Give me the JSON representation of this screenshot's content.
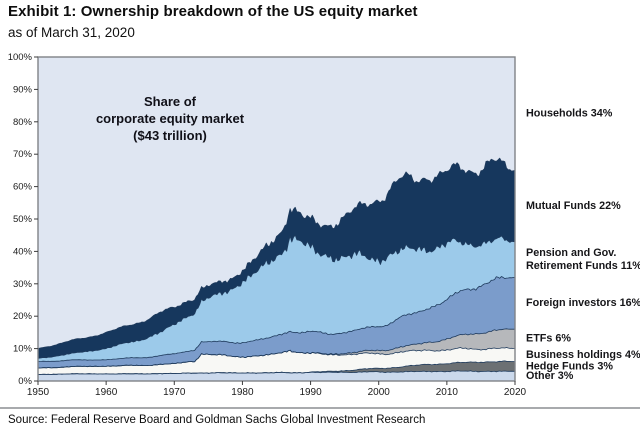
{
  "header": {
    "title": "Exhibit 1: Ownership breakdown of the US equity market",
    "subtitle": "as of March 31, 2020"
  },
  "footer": {
    "source": "Source: Federal Reserve Board and Goldman Sachs Global Investment Research"
  },
  "chart_data": {
    "type": "area",
    "stacked": true,
    "annotation": {
      "lines": [
        "Share of",
        "corporate equity market",
        "($43 trillion)"
      ]
    },
    "x_range": [
      1950,
      2020
    ],
    "ylim": [
      0,
      100
    ],
    "grid": false,
    "legend_position": "right-margin",
    "x_ticks": [
      1950,
      1960,
      1970,
      1980,
      1990,
      2000,
      2010,
      2020
    ],
    "x_tick_labels": [
      "1950",
      "1960",
      "1970",
      "1980",
      "1990",
      "2000",
      "2010",
      "2020"
    ],
    "y_ticks": [
      0,
      10,
      20,
      30,
      40,
      50,
      60,
      70,
      80,
      90,
      100
    ],
    "y_tick_labels": [
      "0%",
      "10%",
      "20%",
      "30%",
      "40%",
      "50%",
      "60%",
      "70%",
      "80%",
      "90%",
      "100%"
    ],
    "keyframe_years": [
      1950,
      1955,
      1960,
      1965,
      1968,
      1970,
      1972,
      1973,
      1974,
      1976,
      1978,
      1980,
      1982,
      1984,
      1986,
      1987,
      1989,
      1991,
      1993,
      1995,
      1997,
      1999,
      2001,
      2003,
      2005,
      2007,
      2009,
      2011,
      2013,
      2015,
      2017,
      2019,
      2020
    ],
    "series": [
      {
        "name": "Other",
        "label_lines": [
          "Other 3%"
        ],
        "share_2020": 3,
        "color": "#cbd9ec",
        "values": [
          2.0,
          2.2,
          2.2,
          2.2,
          2.3,
          2.3,
          2.4,
          2.45,
          2.5,
          2.5,
          2.5,
          2.5,
          2.5,
          2.5,
          2.6,
          2.6,
          2.6,
          2.6,
          2.7,
          2.7,
          2.7,
          2.8,
          2.8,
          2.8,
          2.9,
          2.9,
          3.0,
          3.0,
          3.0,
          3.0,
          3.0,
          3.0,
          3.0
        ]
      },
      {
        "name": "Hedge Funds",
        "label_lines": [
          "Hedge Funds 3%"
        ],
        "share_2020": 3,
        "color": "#6c7073",
        "values": [
          0,
          0,
          0,
          0,
          0,
          0,
          0,
          0,
          0,
          0,
          0,
          0,
          0,
          0,
          0,
          0,
          0,
          0.2,
          0.3,
          0.5,
          0.8,
          1.0,
          1.2,
          1.5,
          1.8,
          2.2,
          2.3,
          2.5,
          2.7,
          2.9,
          3.0,
          3.0,
          3.0
        ]
      },
      {
        "name": "Business holdings",
        "label_lines": [
          "Business holdings 4%"
        ],
        "share_2020": 4,
        "color": "#f8f8f5",
        "values": [
          2.0,
          2.2,
          2.4,
          2.6,
          2.8,
          3.0,
          3.5,
          3.6,
          6.0,
          5.5,
          5.2,
          5.0,
          5.2,
          5.5,
          6.2,
          7.0,
          6.0,
          5.5,
          5.2,
          5.0,
          4.8,
          4.6,
          4.5,
          4.5,
          4.5,
          4.4,
          4.3,
          4.2,
          4.2,
          4.1,
          4.1,
          4.0,
          4.0
        ]
      },
      {
        "name": "ETFs",
        "label_lines": [
          "ETFs 6%"
        ],
        "share_2020": 6,
        "color": "#b6b8bb",
        "values": [
          0,
          0,
          0,
          0,
          0,
          0,
          0,
          0,
          0,
          0,
          0,
          0,
          0,
          0,
          0,
          0,
          0,
          0.1,
          0.2,
          0.4,
          0.6,
          0.9,
          1.2,
          1.5,
          1.8,
          2.4,
          3.0,
          3.7,
          4.4,
          5.0,
          5.5,
          5.8,
          6.0
        ]
      },
      {
        "name": "Foreign investors",
        "label_lines": [
          "Foreign investors 16%"
        ],
        "share_2020": 16,
        "color": "#7b9ccb",
        "values": [
          2.0,
          2.0,
          2.0,
          2.4,
          2.7,
          3.0,
          3.3,
          3.5,
          3.8,
          4.0,
          4.2,
          4.5,
          4.8,
          5.2,
          5.8,
          6.0,
          6.3,
          6.5,
          6.3,
          6.4,
          6.8,
          7.2,
          7.8,
          9.0,
          9.5,
          10.5,
          11.5,
          12.8,
          13.8,
          15.0,
          15.5,
          15.8,
          16.0
        ]
      },
      {
        "name": "Pension and Gov. Retirement Funds",
        "label_lines": [
          "Pension and Gov.",
          "Retirement Funds 11%"
        ],
        "share_2020": 11,
        "color": "#9ccaea",
        "values": [
          1.0,
          2.0,
          3.5,
          5.5,
          7.2,
          9.0,
          11.0,
          11.8,
          12.5,
          14.0,
          16.0,
          19.0,
          21.0,
          23.0,
          26.0,
          29.5,
          27.0,
          24.5,
          24.0,
          23.5,
          22.5,
          21.5,
          21.0,
          20.5,
          20.0,
          19.0,
          17.5,
          16.0,
          14.5,
          13.0,
          12.0,
          11.3,
          11.0
        ]
      },
      {
        "name": "Mutual Funds",
        "label_lines": [
          "Mutual Funds 22%"
        ],
        "share_2020": 22,
        "color": "#16375d",
        "values": [
          3.0,
          4.0,
          4.8,
          5.5,
          6.0,
          5.2,
          4.8,
          4.3,
          3.8,
          3.5,
          3.3,
          3.5,
          4.2,
          5.5,
          7.0,
          9.0,
          8.0,
          8.8,
          10.0,
          12.0,
          14.5,
          17.5,
          19.5,
          21.5,
          21.5,
          22.5,
          21.5,
          22.5,
          23.0,
          23.5,
          23.5,
          22.5,
          22.0
        ]
      },
      {
        "name": "Households",
        "label_lines": [
          "Households 34%"
        ],
        "share_2020": 34,
        "color": "#dfe6f2",
        "remainder": true
      }
    ],
    "outline_color": "#1e3a5c",
    "axis_color": "#7f8287",
    "tick_text_color": "#1a1a1a"
  }
}
